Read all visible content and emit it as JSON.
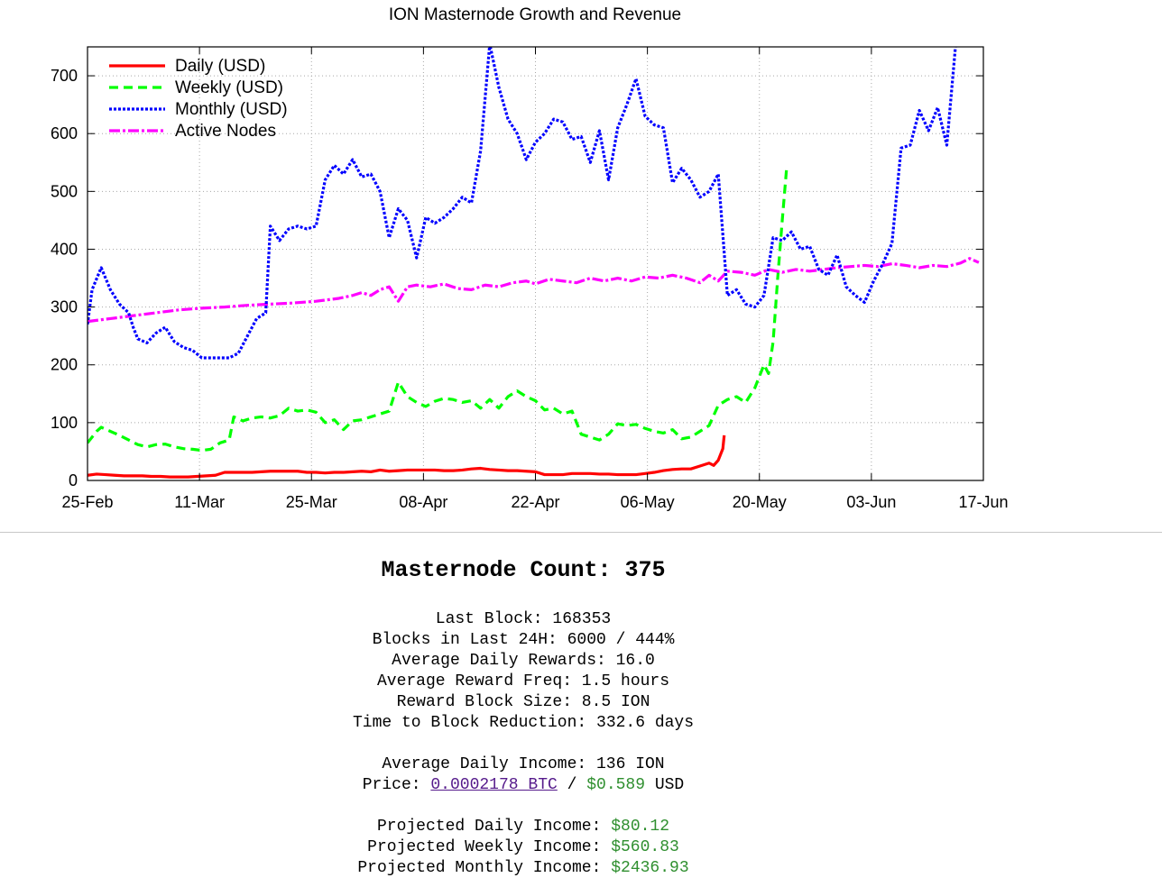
{
  "chart_data": {
    "type": "line",
    "title": "ION Masternode Growth and Revenue",
    "ylim": [
      0,
      750
    ],
    "yticks": [
      0,
      100,
      200,
      300,
      400,
      500,
      600,
      700
    ],
    "xlim": [
      "2018-02-25",
      "2018-06-17"
    ],
    "xticks": [
      "25-Feb",
      "11-Mar",
      "25-Mar",
      "08-Apr",
      "22-Apr",
      "06-May",
      "20-May",
      "03-Jun",
      "17-Jun"
    ],
    "grid": true,
    "legend_position": "top-left",
    "series": [
      {
        "name": "Daily (USD)",
        "color": "#ff0000",
        "dash": "solid",
        "points": [
          [
            0,
            9
          ],
          [
            2,
            11
          ],
          [
            4,
            10
          ],
          [
            6,
            9
          ],
          [
            8,
            8
          ],
          [
            10,
            8
          ],
          [
            12,
            8
          ],
          [
            14,
            7
          ],
          [
            16,
            7
          ],
          [
            18,
            6
          ],
          [
            20,
            6
          ],
          [
            22,
            6
          ],
          [
            24,
            7
          ],
          [
            26,
            8
          ],
          [
            28,
            9
          ],
          [
            30,
            14
          ],
          [
            32,
            14
          ],
          [
            34,
            14
          ],
          [
            36,
            14
          ],
          [
            38,
            15
          ],
          [
            40,
            16
          ],
          [
            42,
            16
          ],
          [
            44,
            16
          ],
          [
            46,
            16
          ],
          [
            48,
            14
          ],
          [
            50,
            14
          ],
          [
            52,
            13
          ],
          [
            54,
            14
          ],
          [
            56,
            14
          ],
          [
            58,
            15
          ],
          [
            60,
            16
          ],
          [
            62,
            15
          ],
          [
            64,
            18
          ],
          [
            66,
            16
          ],
          [
            68,
            17
          ],
          [
            70,
            18
          ],
          [
            72,
            18
          ],
          [
            74,
            18
          ],
          [
            76,
            18
          ],
          [
            78,
            17
          ],
          [
            80,
            17
          ],
          [
            82,
            18
          ],
          [
            84,
            20
          ],
          [
            86,
            21
          ],
          [
            88,
            19
          ],
          [
            90,
            18
          ],
          [
            92,
            17
          ],
          [
            94,
            17
          ],
          [
            96,
            16
          ],
          [
            98,
            15
          ],
          [
            100,
            10
          ],
          [
            102,
            10
          ],
          [
            104,
            10
          ],
          [
            106,
            12
          ],
          [
            108,
            12
          ],
          [
            110,
            12
          ],
          [
            112,
            11
          ],
          [
            114,
            11
          ],
          [
            116,
            10
          ],
          [
            118,
            10
          ],
          [
            120,
            10
          ],
          [
            122,
            12
          ],
          [
            124,
            14
          ],
          [
            126,
            17
          ],
          [
            128,
            19
          ],
          [
            130,
            20
          ],
          [
            132,
            20
          ],
          [
            134,
            25
          ],
          [
            136,
            30
          ],
          [
            137,
            26
          ],
          [
            138,
            35
          ],
          [
            139,
            55
          ],
          [
            139.3,
            78
          ]
        ]
      },
      {
        "name": "Weekly (USD)",
        "color": "#00ff00",
        "dash": "dashed",
        "points": [
          [
            0,
            65
          ],
          [
            2,
            85
          ],
          [
            3,
            92
          ],
          [
            5,
            85
          ],
          [
            7,
            78
          ],
          [
            9,
            70
          ],
          [
            11,
            62
          ],
          [
            13,
            58
          ],
          [
            15,
            62
          ],
          [
            17,
            63
          ],
          [
            19,
            58
          ],
          [
            21,
            55
          ],
          [
            23,
            54
          ],
          [
            25,
            52
          ],
          [
            27,
            54
          ],
          [
            29,
            65
          ],
          [
            31,
            70
          ],
          [
            32,
            110
          ],
          [
            34,
            103
          ],
          [
            36,
            108
          ],
          [
            38,
            110
          ],
          [
            40,
            108
          ],
          [
            42,
            112
          ],
          [
            44,
            125
          ],
          [
            46,
            120
          ],
          [
            48,
            122
          ],
          [
            50,
            118
          ],
          [
            52,
            100
          ],
          [
            54,
            105
          ],
          [
            56,
            88
          ],
          [
            58,
            103
          ],
          [
            60,
            105
          ],
          [
            62,
            110
          ],
          [
            64,
            115
          ],
          [
            66,
            120
          ],
          [
            68,
            170
          ],
          [
            70,
            145
          ],
          [
            72,
            135
          ],
          [
            74,
            128
          ],
          [
            76,
            137
          ],
          [
            78,
            142
          ],
          [
            80,
            140
          ],
          [
            82,
            135
          ],
          [
            84,
            138
          ],
          [
            86,
            125
          ],
          [
            88,
            140
          ],
          [
            90,
            125
          ],
          [
            92,
            145
          ],
          [
            94,
            155
          ],
          [
            96,
            145
          ],
          [
            98,
            138
          ],
          [
            100,
            122
          ],
          [
            102,
            125
          ],
          [
            104,
            115
          ],
          [
            106,
            120
          ],
          [
            108,
            80
          ],
          [
            110,
            75
          ],
          [
            112,
            70
          ],
          [
            114,
            80
          ],
          [
            116,
            98
          ],
          [
            118,
            95
          ],
          [
            120,
            97
          ],
          [
            122,
            90
          ],
          [
            124,
            85
          ],
          [
            126,
            82
          ],
          [
            128,
            88
          ],
          [
            130,
            72
          ],
          [
            132,
            75
          ],
          [
            134,
            85
          ],
          [
            136,
            95
          ],
          [
            138,
            130
          ],
          [
            140,
            140
          ],
          [
            142,
            145
          ],
          [
            144,
            135
          ],
          [
            146,
            160
          ],
          [
            148,
            200
          ],
          [
            149,
            185
          ],
          [
            150,
            240
          ],
          [
            151,
            350
          ],
          [
            152,
            450
          ],
          [
            153,
            545
          ]
        ]
      },
      {
        "name": "Monthly (USD)",
        "color": "#0000ff",
        "dash": "dotted",
        "points": [
          [
            0,
            270
          ],
          [
            1,
            330
          ],
          [
            3,
            368
          ],
          [
            5,
            330
          ],
          [
            7,
            305
          ],
          [
            9,
            290
          ],
          [
            10,
            265
          ],
          [
            11,
            245
          ],
          [
            13,
            238
          ],
          [
            15,
            255
          ],
          [
            17,
            265
          ],
          [
            19,
            240
          ],
          [
            21,
            230
          ],
          [
            23,
            225
          ],
          [
            25,
            212
          ],
          [
            27,
            212
          ],
          [
            29,
            212
          ],
          [
            31,
            212
          ],
          [
            33,
            220
          ],
          [
            35,
            250
          ],
          [
            37,
            280
          ],
          [
            39,
            290
          ],
          [
            40,
            440
          ],
          [
            42,
            415
          ],
          [
            44,
            435
          ],
          [
            46,
            440
          ],
          [
            48,
            435
          ],
          [
            50,
            440
          ],
          [
            52,
            520
          ],
          [
            54,
            545
          ],
          [
            56,
            530
          ],
          [
            58,
            555
          ],
          [
            60,
            525
          ],
          [
            62,
            530
          ],
          [
            64,
            500
          ],
          [
            66,
            420
          ],
          [
            68,
            470
          ],
          [
            70,
            450
          ],
          [
            72,
            385
          ],
          [
            74,
            455
          ],
          [
            76,
            445
          ],
          [
            78,
            455
          ],
          [
            80,
            470
          ],
          [
            82,
            490
          ],
          [
            84,
            480
          ],
          [
            86,
            570
          ],
          [
            88,
            755
          ],
          [
            90,
            680
          ],
          [
            92,
            625
          ],
          [
            94,
            600
          ],
          [
            96,
            555
          ],
          [
            98,
            585
          ],
          [
            100,
            600
          ],
          [
            102,
            625
          ],
          [
            104,
            620
          ],
          [
            106,
            590
          ],
          [
            108,
            595
          ],
          [
            110,
            550
          ],
          [
            112,
            605
          ],
          [
            114,
            520
          ],
          [
            116,
            610
          ],
          [
            118,
            650
          ],
          [
            120,
            695
          ],
          [
            122,
            630
          ],
          [
            124,
            615
          ],
          [
            126,
            610
          ],
          [
            128,
            515
          ],
          [
            130,
            540
          ],
          [
            132,
            520
          ],
          [
            134,
            490
          ],
          [
            136,
            500
          ],
          [
            138,
            530
          ],
          [
            140,
            320
          ],
          [
            142,
            330
          ],
          [
            144,
            305
          ],
          [
            146,
            300
          ],
          [
            148,
            320
          ],
          [
            150,
            420
          ],
          [
            152,
            415
          ],
          [
            154,
            430
          ],
          [
            156,
            400
          ],
          [
            158,
            405
          ],
          [
            160,
            365
          ],
          [
            162,
            355
          ],
          [
            164,
            390
          ],
          [
            166,
            335
          ],
          [
            168,
            320
          ],
          [
            170,
            308
          ],
          [
            172,
            345
          ],
          [
            174,
            375
          ],
          [
            176,
            410
          ],
          [
            178,
            575
          ],
          [
            180,
            580
          ],
          [
            182,
            640
          ],
          [
            184,
            605
          ],
          [
            186,
            645
          ],
          [
            188,
            580
          ],
          [
            190,
            760
          ]
        ]
      },
      {
        "name": "Active Nodes",
        "color": "#ff00ff",
        "dash": "dashdot",
        "points": [
          [
            0,
            275
          ],
          [
            5,
            280
          ],
          [
            10,
            285
          ],
          [
            15,
            290
          ],
          [
            20,
            295
          ],
          [
            25,
            298
          ],
          [
            30,
            300
          ],
          [
            35,
            303
          ],
          [
            40,
            305
          ],
          [
            45,
            307
          ],
          [
            50,
            310
          ],
          [
            55,
            315
          ],
          [
            58,
            320
          ],
          [
            60,
            325
          ],
          [
            62,
            320
          ],
          [
            64,
            330
          ],
          [
            66,
            335
          ],
          [
            68,
            310
          ],
          [
            70,
            335
          ],
          [
            72,
            338
          ],
          [
            75,
            335
          ],
          [
            78,
            340
          ],
          [
            81,
            332
          ],
          [
            84,
            330
          ],
          [
            87,
            338
          ],
          [
            90,
            335
          ],
          [
            93,
            342
          ],
          [
            96,
            345
          ],
          [
            98,
            340
          ],
          [
            101,
            348
          ],
          [
            104,
            345
          ],
          [
            107,
            342
          ],
          [
            110,
            350
          ],
          [
            113,
            345
          ],
          [
            116,
            350
          ],
          [
            119,
            345
          ],
          [
            122,
            352
          ],
          [
            125,
            350
          ],
          [
            128,
            355
          ],
          [
            131,
            350
          ],
          [
            134,
            342
          ],
          [
            136,
            355
          ],
          [
            138,
            345
          ],
          [
            140,
            362
          ],
          [
            143,
            360
          ],
          [
            146,
            355
          ],
          [
            149,
            365
          ],
          [
            152,
            360
          ],
          [
            155,
            365
          ],
          [
            158,
            362
          ],
          [
            161,
            365
          ],
          [
            164,
            368
          ],
          [
            167,
            370
          ],
          [
            170,
            372
          ],
          [
            173,
            370
          ],
          [
            176,
            375
          ],
          [
            179,
            372
          ],
          [
            182,
            368
          ],
          [
            185,
            372
          ],
          [
            188,
            370
          ],
          [
            191,
            376
          ],
          [
            193,
            384
          ],
          [
            195,
            377
          ]
        ]
      }
    ]
  },
  "stats": {
    "title": "Masternode Count: 375",
    "last_block": "Last Block: 168353",
    "blocks_24h": "Blocks in Last 24H: 6000 / 444%",
    "avg_daily_rewards": "Average Daily Rewards: 16.0",
    "avg_reward_freq": "Average Reward Freq: 1.5 hours",
    "reward_block_size": "Reward Block Size: 8.5 ION",
    "time_to_reduction": "Time to Block Reduction: 332.6 days",
    "avg_daily_income": "Average Daily Income: 136 ION",
    "price_label": "Price: ",
    "price_btc": "0.0002178 BTC",
    "price_sep": " / ",
    "price_usd": "$0.589",
    "price_unit": " USD",
    "proj_daily_label": "Projected Daily Income: ",
    "proj_daily_value": "$80.12",
    "proj_weekly_label": "Projected Weekly Income: ",
    "proj_weekly_value": "$560.83",
    "proj_monthly_label": "Projected Monthly Income: ",
    "proj_monthly_value": "$2436.93"
  }
}
